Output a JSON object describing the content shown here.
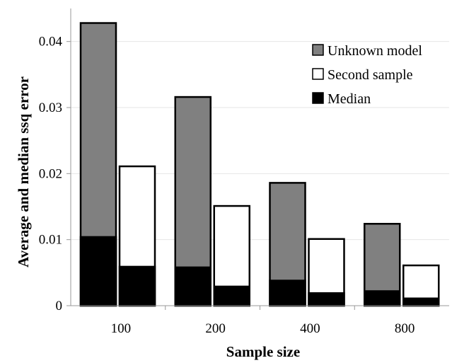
{
  "chart_data": {
    "type": "bar",
    "title": "",
    "xlabel": "Sample size",
    "ylabel": "Average and median ssq error",
    "categories": [
      "100",
      "200",
      "400",
      "800"
    ],
    "ylim": [
      0,
      0.045
    ],
    "yticks": [
      "0",
      "0.01",
      "0.02",
      "0.03",
      "0.04"
    ],
    "ytick_values": [
      0,
      0.01,
      0.02,
      0.03,
      0.04
    ],
    "grid": true,
    "legend_position": "top-right",
    "series": [
      {
        "name": "Unknown model",
        "values": [
          0.0428,
          0.0316,
          0.0186,
          0.0124
        ],
        "color": "#808080"
      },
      {
        "name": "Second sample",
        "values": [
          0.0211,
          0.0151,
          0.0101,
          0.0061
        ],
        "color": "#ffffff"
      }
    ],
    "median": {
      "name": "Median",
      "color": "#000000",
      "unknown_model": [
        0.0104,
        0.0058,
        0.0038,
        0.0022
      ],
      "second_sample": [
        0.0059,
        0.0029,
        0.0019,
        0.0011
      ]
    }
  }
}
